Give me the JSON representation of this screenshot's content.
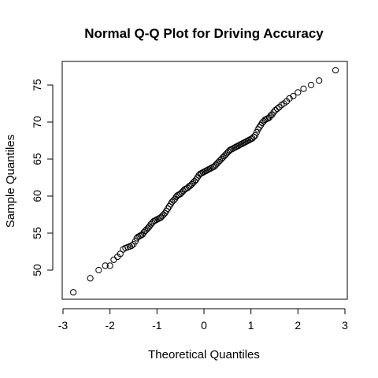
{
  "chart_data": {
    "type": "scatter",
    "title": "Normal Q-Q Plot for Driving Accuracy",
    "xlabel": "Theoretical Quantiles",
    "ylabel": "Sample Quantiles",
    "xlim": [
      -3,
      3
    ],
    "ylim": [
      46.5,
      78
    ],
    "xticks": [
      -3,
      -2,
      -1,
      0,
      1,
      2,
      3
    ],
    "yticks": [
      50,
      55,
      60,
      65,
      70,
      75
    ],
    "grid": false,
    "legend": "none",
    "marker": "open-circle",
    "colors": {
      "points": "#000000",
      "axes": "#000000",
      "background": "#ffffff"
    },
    "points": {
      "x": [
        -2.78,
        -2.42,
        -2.24,
        -2.1,
        -2.0,
        -1.92,
        -1.84,
        -1.78,
        -1.72,
        -1.67,
        -1.62,
        -1.58,
        -1.54,
        -1.5,
        -1.46,
        -1.43,
        -1.4,
        -1.37,
        -1.34,
        -1.31,
        -1.28,
        -1.25,
        -1.22,
        -1.19,
        -1.16,
        -1.13,
        -1.1,
        -1.07,
        -1.04,
        -1.01,
        -0.98,
        -0.95,
        -0.92,
        -0.89,
        -0.86,
        -0.83,
        -0.8,
        -0.77,
        -0.74,
        -0.71,
        -0.68,
        -0.65,
        -0.62,
        -0.59,
        -0.56,
        -0.53,
        -0.5,
        -0.47,
        -0.44,
        -0.41,
        -0.38,
        -0.35,
        -0.32,
        -0.29,
        -0.26,
        -0.23,
        -0.2,
        -0.17,
        -0.14,
        -0.11,
        -0.08,
        -0.05,
        -0.02,
        0.01,
        0.04,
        0.07,
        0.1,
        0.13,
        0.16,
        0.19,
        0.22,
        0.25,
        0.28,
        0.31,
        0.34,
        0.37,
        0.4,
        0.43,
        0.46,
        0.49,
        0.52,
        0.55,
        0.58,
        0.61,
        0.64,
        0.67,
        0.7,
        0.73,
        0.76,
        0.79,
        0.82,
        0.85,
        0.88,
        0.91,
        0.94,
        0.97,
        1.0,
        1.03,
        1.06,
        1.09,
        1.12,
        1.15,
        1.18,
        1.21,
        1.24,
        1.27,
        1.3,
        1.33,
        1.36,
        1.39,
        1.42,
        1.45,
        1.48,
        1.52,
        1.56,
        1.6,
        1.65,
        1.7,
        1.76,
        1.82,
        1.9,
        2.0,
        2.12,
        2.28,
        2.45,
        2.8
      ],
      "y": [
        47.0,
        48.9,
        50.0,
        50.6,
        50.6,
        51.4,
        51.8,
        52.2,
        52.8,
        53.0,
        53.1,
        53.2,
        53.3,
        53.5,
        53.9,
        54.3,
        54.5,
        54.6,
        54.7,
        54.8,
        55.1,
        55.3,
        55.5,
        55.7,
        55.9,
        56.2,
        56.4,
        56.6,
        56.7,
        56.8,
        56.9,
        57.0,
        57.1,
        57.3,
        57.5,
        57.7,
        58.0,
        58.3,
        58.6,
        58.9,
        59.2,
        59.4,
        59.6,
        59.9,
        60.1,
        60.2,
        60.3,
        60.5,
        60.7,
        60.9,
        61.0,
        61.1,
        61.3,
        61.4,
        61.6,
        61.8,
        62.0,
        62.2,
        62.5,
        62.8,
        63.0,
        63.1,
        63.2,
        63.3,
        63.4,
        63.5,
        63.6,
        63.7,
        63.8,
        63.9,
        64.0,
        64.2,
        64.4,
        64.6,
        64.8,
        65.0,
        65.2,
        65.4,
        65.6,
        65.8,
        66.0,
        66.2,
        66.3,
        66.4,
        66.5,
        66.6,
        66.7,
        66.8,
        66.9,
        67.0,
        67.1,
        67.2,
        67.3,
        67.4,
        67.5,
        67.6,
        67.7,
        67.8,
        68.0,
        68.2,
        68.6,
        69.0,
        69.3,
        69.6,
        69.9,
        70.1,
        70.3,
        70.4,
        70.5,
        70.6,
        70.9,
        71.0,
        71.3,
        71.6,
        71.8,
        72.0,
        72.3,
        72.5,
        72.8,
        73.2,
        73.5,
        74.0,
        74.5,
        75.0,
        75.6,
        77.0
      ]
    }
  }
}
